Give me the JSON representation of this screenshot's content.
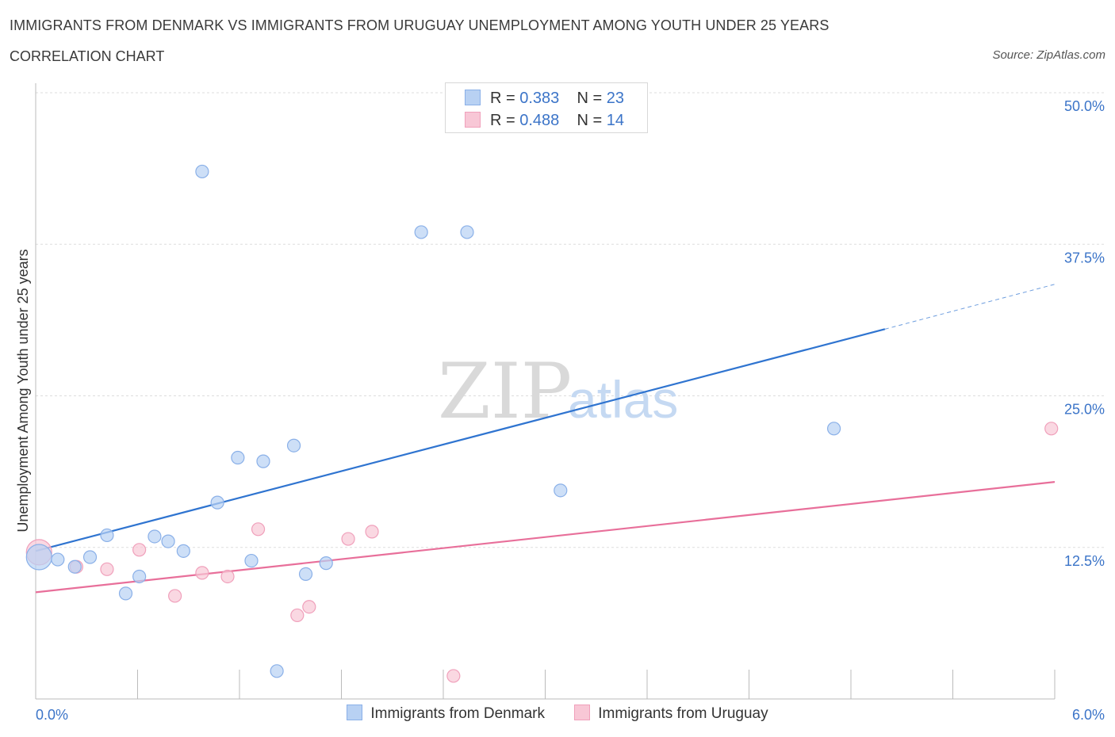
{
  "title": "IMMIGRANTS FROM DENMARK VS IMMIGRANTS FROM URUGUAY UNEMPLOYMENT AMONG YOUTH UNDER 25 YEARS",
  "subtitle": "CORRELATION CHART",
  "source": "Source: ZipAtlas.com",
  "watermark": {
    "zip": "ZIP",
    "atlas": "atlas"
  },
  "legend_top": {
    "r_label": "R =",
    "n_label": "N =",
    "rows": [
      {
        "r": "0.383",
        "n": "23"
      },
      {
        "r": "0.488",
        "n": "14"
      }
    ]
  },
  "colors": {
    "denmark_fill": "#b8d1f3",
    "denmark_stroke": "#8ab0e8",
    "denmark_line": "#2f74d0",
    "uruguay_fill": "#f8c7d6",
    "uruguay_stroke": "#f0a0bb",
    "uruguay_line": "#e86f9a",
    "axis_label": "#3b74c8",
    "grid": "#dddddd"
  },
  "chart_data": {
    "type": "scatter",
    "xlabel": "",
    "ylabel": "Unemployment Among Youth under 25 years",
    "xlim": [
      0,
      6
    ],
    "ylim": [
      0,
      50
    ],
    "x_tick_labels": [
      "0.0%",
      "6.0%"
    ],
    "y_ticks": [
      12.5,
      25.0,
      37.5,
      50.0
    ],
    "y_tick_labels": [
      "12.5%",
      "25.0%",
      "37.5%",
      "50.0%"
    ],
    "grid": true,
    "series": [
      {
        "name": "Immigrants from Denmark",
        "r": 0.383,
        "n": 23,
        "points": [
          {
            "x": 0.02,
            "y": 11.7,
            "big": true
          },
          {
            "x": 0.13,
            "y": 11.5
          },
          {
            "x": 0.23,
            "y": 10.9
          },
          {
            "x": 0.32,
            "y": 11.7
          },
          {
            "x": 0.42,
            "y": 13.5
          },
          {
            "x": 0.53,
            "y": 8.7
          },
          {
            "x": 0.61,
            "y": 10.1
          },
          {
            "x": 0.7,
            "y": 13.4
          },
          {
            "x": 0.78,
            "y": 13.0
          },
          {
            "x": 0.87,
            "y": 12.2
          },
          {
            "x": 0.98,
            "y": 43.5
          },
          {
            "x": 1.07,
            "y": 16.2
          },
          {
            "x": 1.19,
            "y": 19.9
          },
          {
            "x": 1.27,
            "y": 11.4
          },
          {
            "x": 1.34,
            "y": 19.6
          },
          {
            "x": 1.42,
            "y": 2.3
          },
          {
            "x": 1.52,
            "y": 20.9
          },
          {
            "x": 1.59,
            "y": 10.3
          },
          {
            "x": 1.71,
            "y": 11.2
          },
          {
            "x": 2.27,
            "y": 38.5
          },
          {
            "x": 2.54,
            "y": 38.5
          },
          {
            "x": 3.09,
            "y": 17.2
          },
          {
            "x": 4.7,
            "y": 22.3
          }
        ],
        "trend": {
          "x0": 0.0,
          "y0": 12.2,
          "x1": 5.0,
          "y1": 30.5,
          "dash_to_x": 6.0,
          "dash_to_y": 34.2
        }
      },
      {
        "name": "Immigrants from Uruguay",
        "r": 0.488,
        "n": 14,
        "points": [
          {
            "x": 0.02,
            "y": 12.1,
            "big": true
          },
          {
            "x": 0.24,
            "y": 10.9
          },
          {
            "x": 0.42,
            "y": 10.7
          },
          {
            "x": 0.61,
            "y": 12.3
          },
          {
            "x": 0.82,
            "y": 8.5
          },
          {
            "x": 0.98,
            "y": 10.4
          },
          {
            "x": 1.13,
            "y": 10.1
          },
          {
            "x": 1.31,
            "y": 14.0
          },
          {
            "x": 1.54,
            "y": 6.9
          },
          {
            "x": 1.61,
            "y": 7.6
          },
          {
            "x": 1.84,
            "y": 13.2
          },
          {
            "x": 1.98,
            "y": 13.8
          },
          {
            "x": 2.46,
            "y": 1.9
          },
          {
            "x": 5.98,
            "y": 22.3
          }
        ],
        "trend": {
          "x0": 0.0,
          "y0": 8.8,
          "x1": 6.0,
          "y1": 17.9
        }
      }
    ]
  }
}
